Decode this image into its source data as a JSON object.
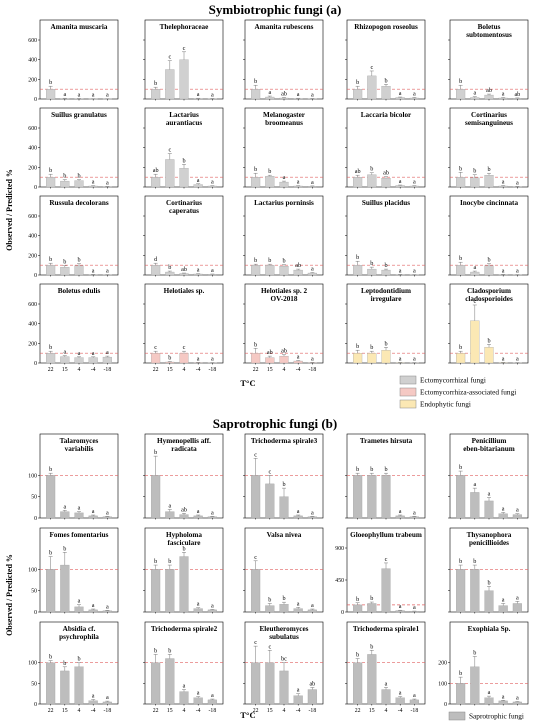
{
  "figure": {
    "ylabel": "Observed / Predicted %",
    "xlabel": "T°C",
    "x_ticks": [
      "22",
      "15",
      "4",
      "-4",
      "-18"
    ]
  },
  "legend": {
    "section_a": [
      {
        "label": "Ectomycorrhizal fungi",
        "color": "#d0d0d0"
      },
      {
        "label": "Ectomycorrhiza-associated fungi",
        "color": "#f5c9c4"
      },
      {
        "label": "Endophytic fungi",
        "color": "#fbe8b4"
      }
    ],
    "section_b": [
      {
        "label": "Saprotrophic fungi",
        "color": "#bdbdbd"
      }
    ]
  },
  "colors": {
    "ectomycorrhizal": "#d0d0d0",
    "ectomycorrhiza_associated": "#f5c9c4",
    "endophytic": "#fbe8b4",
    "saprotrophic": "#bdbdbd",
    "reference_line": "#e06060"
  },
  "chart_data": [
    {
      "type": "bar",
      "title": "Symbiotrophic fungi (a)",
      "categories": [
        "22",
        "15",
        "4",
        "-4",
        "-18"
      ],
      "ylim": [
        0,
        600
      ],
      "y_ticks": [
        0,
        200,
        400,
        600
      ],
      "reference_value": 100,
      "panels": [
        {
          "title": "Amanita muscaria",
          "group": "ectomycorrhizal",
          "values": [
            100,
            5,
            3,
            2,
            2
          ],
          "errors": [
            30,
            3,
            2,
            1,
            1
          ],
          "letters": [
            "b",
            "a",
            "a",
            "a",
            "a"
          ]
        },
        {
          "title": "Thelephoraceae",
          "group": "ectomycorrhizal",
          "values": [
            100,
            300,
            400,
            5,
            3
          ],
          "errors": [
            20,
            90,
            80,
            3,
            2
          ],
          "letters": [
            "b",
            "c",
            "c",
            "a",
            "a"
          ]
        },
        {
          "title": "Amanita rubescens",
          "group": "ectomycorrhizal",
          "values": [
            100,
            20,
            10,
            5,
            3
          ],
          "errors": [
            40,
            10,
            5,
            3,
            2
          ],
          "letters": [
            "b",
            "a",
            "ab",
            "a",
            "a"
          ]
        },
        {
          "title": "Rhizopogon roseolus",
          "group": "ectomycorrhizal",
          "values": [
            100,
            235,
            130,
            15,
            10
          ],
          "errors": [
            30,
            50,
            20,
            5,
            5
          ],
          "letters": [
            "b",
            "c",
            "b",
            "a",
            "a"
          ]
        },
        {
          "title": "Boletus subtomentosus",
          "group": "ectomycorrhizal",
          "values": [
            100,
            15,
            40,
            10,
            8
          ],
          "errors": [
            40,
            8,
            10,
            4,
            3
          ],
          "letters": [
            "b",
            "a",
            "ab",
            "a",
            "ab"
          ]
        },
        {
          "title": "Suillus granulatus",
          "group": "ectomycorrhizal",
          "values": [
            100,
            60,
            65,
            10,
            5
          ],
          "errors": [
            30,
            15,
            10,
            3,
            2
          ],
          "letters": [
            "b",
            "b",
            "b",
            "a",
            "a"
          ]
        },
        {
          "title": "Lactarius aurantiacus",
          "group": "ectomycorrhizal",
          "values": [
            100,
            280,
            190,
            25,
            10
          ],
          "errors": [
            30,
            60,
            40,
            8,
            3
          ],
          "letters": [
            "ab",
            "c",
            "b",
            "a",
            "a"
          ]
        },
        {
          "title": "Melanogaster broomeanus",
          "group": "ectomycorrhizal",
          "values": [
            100,
            110,
            50,
            10,
            8
          ],
          "errors": [
            40,
            10,
            10,
            3,
            3
          ],
          "letters": [
            "b",
            "b",
            "a",
            "a",
            "a"
          ]
        },
        {
          "title": "Laccaria bicolor",
          "group": "ectomycorrhizal",
          "values": [
            100,
            125,
            90,
            15,
            10
          ],
          "errors": [
            20,
            20,
            15,
            5,
            3
          ],
          "letters": [
            "ab",
            "b",
            "ab",
            "a",
            "a"
          ]
        },
        {
          "title": "Cortinarius semisanguineus",
          "group": "ectomycorrhizal",
          "values": [
            100,
            95,
            120,
            10,
            5
          ],
          "errors": [
            50,
            30,
            20,
            4,
            2
          ],
          "letters": [
            "b",
            "b",
            "b",
            "a",
            "a"
          ]
        },
        {
          "title": "Russula decolorans",
          "group": "ectomycorrhizal",
          "values": [
            100,
            80,
            95,
            5,
            3
          ],
          "errors": [
            20,
            15,
            20,
            2,
            1
          ],
          "letters": [
            "b",
            "b",
            "b",
            "a",
            "a"
          ]
        },
        {
          "title": "Cortinarius caperatus",
          "group": "ectomycorrhizal",
          "values": [
            100,
            30,
            15,
            10,
            8
          ],
          "errors": [
            20,
            10,
            5,
            3,
            2
          ],
          "letters": [
            "d",
            "b",
            "ab",
            "a",
            "a"
          ]
        },
        {
          "title": "Lactarius porninsis",
          "group": "ectomycorrhizal",
          "values": [
            100,
            100,
            90,
            50,
            20
          ],
          "errors": [
            10,
            10,
            15,
            10,
            5
          ],
          "letters": [
            "b",
            "b",
            "b",
            "ab",
            "a"
          ]
        },
        {
          "title": "Suillus placidus",
          "group": "ectomycorrhizal",
          "values": [
            100,
            60,
            50,
            5,
            3
          ],
          "errors": [
            40,
            20,
            10,
            2,
            1
          ],
          "letters": [
            "b",
            "b",
            "b",
            "a",
            "a"
          ]
        },
        {
          "title": "Inocybe cincinnata",
          "group": "ectomycorrhizal",
          "values": [
            100,
            30,
            95,
            5,
            3
          ],
          "errors": [
            30,
            10,
            20,
            2,
            1
          ],
          "letters": [
            "b",
            "a",
            "b",
            "a",
            "a"
          ]
        },
        {
          "title": "Boletus edulis",
          "group": "ectomycorrhizal",
          "values": [
            100,
            65,
            55,
            55,
            60
          ],
          "errors": [
            20,
            10,
            8,
            8,
            10
          ],
          "letters": [
            "b",
            "a",
            "a",
            "a",
            "a"
          ]
        },
        {
          "title": "Helotiales sp.",
          "group": "ectomycorrhiza_associated",
          "values": [
            100,
            10,
            100,
            5,
            3
          ],
          "errors": [
            20,
            5,
            20,
            2,
            1
          ],
          "letters": [
            "c",
            "b",
            "c",
            "a",
            "a"
          ]
        },
        {
          "title": "Helotiales sp. 2 OV-2018",
          "group": "ectomycorrhiza_associated",
          "values": [
            100,
            55,
            70,
            20,
            5
          ],
          "errors": [
            50,
            15,
            15,
            5,
            2
          ],
          "letters": [
            "b",
            "ab",
            "ab",
            "a",
            "a"
          ]
        },
        {
          "title": "Leptodontidium irregulare",
          "group": "endophytic",
          "values": [
            100,
            100,
            130,
            5,
            3
          ],
          "errors": [
            30,
            20,
            30,
            2,
            1
          ],
          "letters": [
            "b",
            "b",
            "b",
            "a",
            "a"
          ]
        },
        {
          "title": "Cladosporium cladosporioides",
          "group": "endophytic",
          "values": [
            100,
            430,
            160,
            5,
            3
          ],
          "errors": [
            20,
            160,
            30,
            2,
            1
          ],
          "letters": [
            "b",
            "c",
            "b",
            "a",
            "a"
          ]
        }
      ]
    },
    {
      "type": "bar",
      "title": "Saprotrophic fungi (b)",
      "categories": [
        "22",
        "15",
        "4",
        "-4",
        "-18"
      ],
      "reference_value": 100,
      "panels": [
        {
          "title": "Talaromyces variabilis",
          "group": "saprotrophic",
          "ylim": [
            0,
            150
          ],
          "y_ticks": [
            0,
            50,
            100
          ],
          "values": [
            100,
            15,
            12,
            5,
            3
          ],
          "errors": [
            5,
            3,
            3,
            2,
            1
          ],
          "letters": [
            "b",
            "a",
            "a",
            "a",
            "a"
          ]
        },
        {
          "title": "Hymenopellis aff. radicata",
          "group": "saprotrophic",
          "ylim": [
            0,
            150
          ],
          "y_ticks": [
            0,
            50,
            100
          ],
          "values": [
            100,
            15,
            8,
            5,
            3
          ],
          "errors": [
            45,
            5,
            3,
            2,
            1
          ],
          "letters": [
            "b",
            "a",
            "ab",
            "a",
            "a"
          ]
        },
        {
          "title": "Trichoderma spirale3",
          "group": "saprotrophic",
          "ylim": [
            0,
            150
          ],
          "y_ticks": [
            0,
            50,
            100
          ],
          "values": [
            100,
            80,
            50,
            5,
            3
          ],
          "errors": [
            40,
            20,
            20,
            2,
            1
          ],
          "letters": [
            "c",
            "c",
            "b",
            "a",
            "a"
          ]
        },
        {
          "title": "Trametes hirsuta",
          "group": "saprotrophic",
          "ylim": [
            0,
            150
          ],
          "y_ticks": [
            0,
            50,
            100
          ],
          "values": [
            100,
            100,
            100,
            5,
            3
          ],
          "errors": [
            5,
            5,
            5,
            2,
            1
          ],
          "letters": [
            "b",
            "b",
            "b",
            "a",
            "a"
          ]
        },
        {
          "title": "Penicillium eben-bitarianum",
          "group": "saprotrophic",
          "ylim": [
            0,
            150
          ],
          "y_ticks": [
            0,
            50,
            100
          ],
          "values": [
            100,
            60,
            40,
            10,
            8
          ],
          "errors": [
            10,
            10,
            8,
            3,
            2
          ],
          "letters": [
            "b",
            "a",
            "a",
            "a",
            "a"
          ]
        },
        {
          "title": "Fomes fomentarius",
          "group": "saprotrophic",
          "ylim": [
            0,
            150
          ],
          "y_ticks": [
            0,
            50,
            100
          ],
          "values": [
            100,
            110,
            12,
            5,
            3
          ],
          "errors": [
            30,
            30,
            5,
            2,
            1
          ],
          "letters": [
            "b",
            "b",
            "a",
            "a",
            "a"
          ]
        },
        {
          "title": "Hypholoma fasciculare",
          "group": "saprotrophic",
          "ylim": [
            0,
            150
          ],
          "y_ticks": [
            0,
            50,
            100
          ],
          "values": [
            100,
            100,
            130,
            8,
            5
          ],
          "errors": [
            10,
            10,
            10,
            2,
            1
          ],
          "letters": [
            "b",
            "b",
            "b",
            "a",
            "a"
          ]
        },
        {
          "title": "Valsa nivea",
          "group": "saprotrophic",
          "ylim": [
            0,
            150
          ],
          "y_ticks": [
            0,
            50,
            100
          ],
          "values": [
            100,
            15,
            18,
            8,
            5
          ],
          "errors": [
            20,
            5,
            5,
            3,
            2
          ],
          "letters": [
            "c",
            "b",
            "b",
            "a",
            "a"
          ]
        },
        {
          "title": "Gloeophyllum trabeum",
          "group": "saprotrophic",
          "ylim": [
            0,
            900
          ],
          "y_ticks": [
            0,
            450,
            900
          ],
          "values": [
            100,
            120,
            610,
            20,
            10
          ],
          "errors": [
            30,
            20,
            80,
            5,
            3
          ],
          "letters": [
            "b",
            "b",
            "c",
            "a",
            "a"
          ]
        },
        {
          "title": "Thysanophora penicillioides",
          "group": "saprotrophic",
          "ylim": [
            0,
            150
          ],
          "y_ticks": [
            0,
            50,
            100
          ],
          "values": [
            100,
            100,
            50,
            15,
            20
          ],
          "errors": [
            10,
            10,
            10,
            5,
            5
          ],
          "letters": [
            "b",
            "b",
            "b",
            "a",
            "a"
          ]
        },
        {
          "title": "Absidia cf. psychrophila",
          "group": "saprotrophic",
          "ylim": [
            0,
            150
          ],
          "y_ticks": [
            0,
            50,
            100
          ],
          "values": [
            100,
            80,
            90,
            8,
            5
          ],
          "errors": [
            5,
            10,
            10,
            3,
            2
          ],
          "letters": [
            "b",
            "b",
            "b",
            "a",
            "a"
          ]
        },
        {
          "title": "Trichoderma spiralе2",
          "group": "saprotrophic",
          "ylim": [
            0,
            150
          ],
          "y_ticks": [
            0,
            50,
            100
          ],
          "values": [
            100,
            110,
            30,
            15,
            10
          ],
          "errors": [
            20,
            10,
            5,
            3,
            2
          ],
          "letters": [
            "b",
            "b",
            "a",
            "a",
            "a"
          ]
        },
        {
          "title": "Eleutheromyces subulatus",
          "group": "saprotrophic",
          "ylim": [
            0,
            150
          ],
          "y_ticks": [
            0,
            50,
            100
          ],
          "values": [
            100,
            100,
            80,
            20,
            35
          ],
          "errors": [
            40,
            30,
            20,
            5,
            5
          ],
          "letters": [
            "c",
            "c",
            "bc",
            "a",
            "ab"
          ]
        },
        {
          "title": "Trichoderma spiralе1",
          "group": "saprotrophic",
          "ylim": [
            0,
            150
          ],
          "y_ticks": [
            0,
            50,
            100
          ],
          "values": [
            100,
            120,
            35,
            15,
            10
          ],
          "errors": [
            10,
            10,
            5,
            3,
            2
          ],
          "letters": [
            "b",
            "b",
            "a",
            "a",
            "a"
          ]
        },
        {
          "title": "Exophiala Sp.",
          "group": "saprotrophic",
          "ylim": [
            0,
            300
          ],
          "y_ticks": [
            0,
            100,
            200
          ],
          "values": [
            100,
            180,
            30,
            15,
            10
          ],
          "errors": [
            30,
            50,
            8,
            3,
            2
          ],
          "letters": [
            "b",
            "b",
            "a",
            "a",
            "a"
          ]
        }
      ]
    }
  ]
}
